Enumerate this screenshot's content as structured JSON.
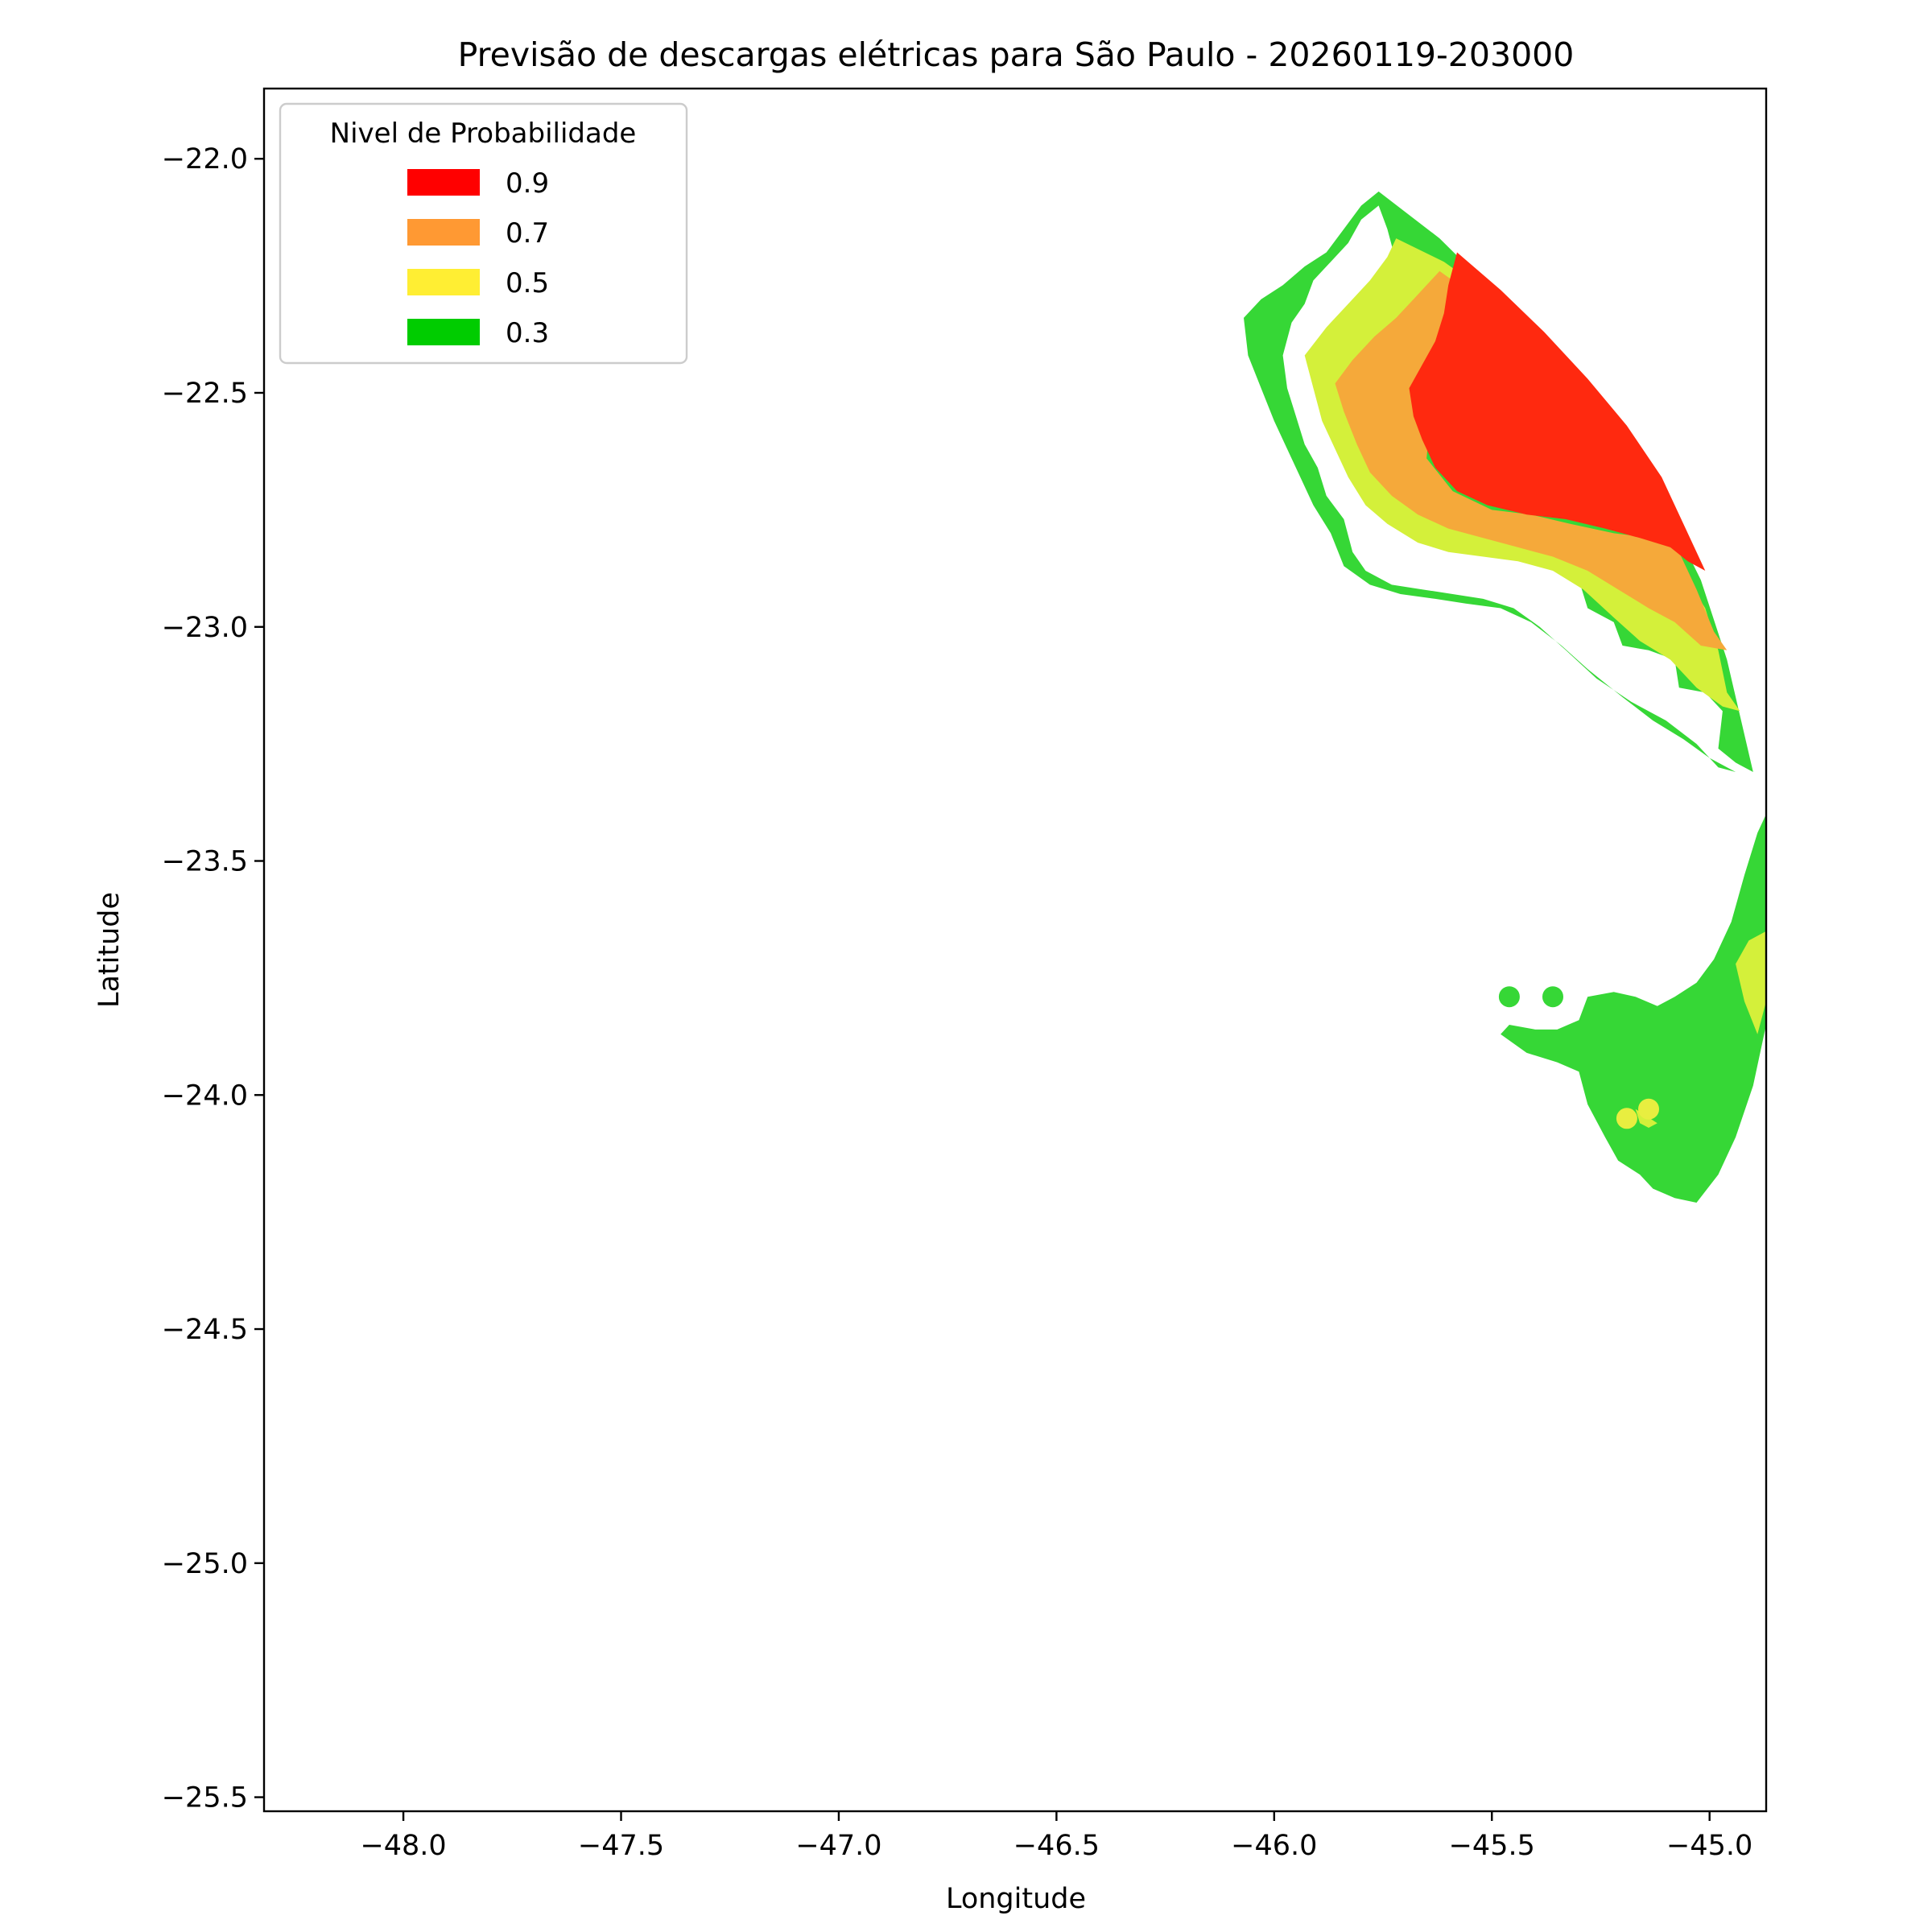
{
  "chart_data": {
    "type": "contour",
    "title": "Previsão de descargas elétricas para São Paulo - 20260119-203000",
    "xlabel": "Longitude",
    "ylabel": "Latitude",
    "xlim": [
      -48.32,
      -44.87
    ],
    "ylim": [
      -25.53,
      -21.85
    ],
    "xticks": [
      -48.0,
      -47.5,
      -47.0,
      -46.5,
      -46.0,
      -45.5,
      -45.0
    ],
    "xtick_labels": [
      "−48.0",
      "−47.5",
      "−47.0",
      "−46.5",
      "−46.0",
      "−45.5",
      "−45.0"
    ],
    "yticks": [
      -22.0,
      -22.5,
      -23.0,
      -23.5,
      -24.0,
      -24.5,
      -25.0,
      -25.5
    ],
    "ytick_labels": [
      "−22.0",
      "−22.5",
      "−23.0",
      "−23.5",
      "−24.0",
      "−24.5",
      "−25.0",
      "−25.5"
    ],
    "grid": false,
    "legend": {
      "title": "Nivel de Probabilidade",
      "placement": "top-left",
      "entries": [
        {
          "label": "0.9",
          "color": "#ff0000"
        },
        {
          "label": "0.7",
          "color": "#ff9933"
        },
        {
          "label": "0.5",
          "color": "#ffee33"
        },
        {
          "label": "0.3",
          "color": "#00cc00"
        }
      ]
    },
    "regions": [
      {
        "level": 0.3,
        "color": "#36d736",
        "points": [
          [
            -45.76,
            -22.07
          ],
          [
            -45.62,
            -22.17
          ],
          [
            -45.49,
            -22.29
          ],
          [
            -45.35,
            -22.42
          ],
          [
            -45.22,
            -22.57
          ],
          [
            -45.11,
            -22.73
          ],
          [
            -45.02,
            -22.9
          ],
          [
            -44.96,
            -23.07
          ],
          [
            -44.9,
            -23.31
          ],
          [
            -44.94,
            -23.29
          ],
          [
            -44.98,
            -23.26
          ],
          [
            -44.97,
            -23.18
          ],
          [
            -45.01,
            -23.14
          ],
          [
            -45.07,
            -23.13
          ],
          [
            -45.08,
            -23.07
          ],
          [
            -45.14,
            -23.05
          ],
          [
            -45.2,
            -23.04
          ],
          [
            -45.22,
            -22.99
          ],
          [
            -45.28,
            -22.96
          ],
          [
            -45.3,
            -22.9
          ],
          [
            -45.37,
            -22.86
          ],
          [
            -45.44,
            -22.84
          ],
          [
            -45.52,
            -22.83
          ],
          [
            -45.6,
            -22.81
          ],
          [
            -45.66,
            -22.78
          ],
          [
            -45.7,
            -22.72
          ],
          [
            -45.7,
            -22.64
          ],
          [
            -45.65,
            -22.58
          ],
          [
            -45.64,
            -22.47
          ],
          [
            -45.67,
            -22.38
          ],
          [
            -45.69,
            -22.3
          ],
          [
            -45.72,
            -22.22
          ],
          [
            -45.74,
            -22.15
          ],
          [
            -45.76,
            -22.1
          ],
          [
            -45.8,
            -22.13
          ],
          [
            -45.83,
            -22.18
          ],
          [
            -45.87,
            -22.22
          ],
          [
            -45.91,
            -22.26
          ],
          [
            -45.93,
            -22.31
          ],
          [
            -45.96,
            -22.35
          ],
          [
            -45.98,
            -22.42
          ],
          [
            -45.97,
            -22.49
          ],
          [
            -45.95,
            -22.55
          ],
          [
            -45.93,
            -22.61
          ],
          [
            -45.9,
            -22.66
          ],
          [
            -45.88,
            -22.72
          ],
          [
            -45.84,
            -22.77
          ],
          [
            -45.82,
            -22.84
          ],
          [
            -45.79,
            -22.88
          ],
          [
            -45.73,
            -22.91
          ],
          [
            -45.66,
            -22.92
          ],
          [
            -45.59,
            -22.93
          ],
          [
            -45.52,
            -22.94
          ],
          [
            -45.45,
            -22.96
          ],
          [
            -45.39,
            -23.0
          ],
          [
            -45.33,
            -23.05
          ],
          [
            -45.26,
            -23.11
          ],
          [
            -45.18,
            -23.16
          ],
          [
            -45.1,
            -23.2
          ],
          [
            -45.03,
            -23.25
          ],
          [
            -44.98,
            -23.3
          ],
          [
            -44.94,
            -23.31
          ],
          [
            -45.0,
            -23.28
          ],
          [
            -45.06,
            -23.24
          ],
          [
            -45.13,
            -23.2
          ],
          [
            -45.2,
            -23.15
          ],
          [
            -45.28,
            -23.09
          ],
          [
            -45.34,
            -23.04
          ],
          [
            -45.41,
            -22.99
          ],
          [
            -45.48,
            -22.96
          ],
          [
            -45.56,
            -22.95
          ],
          [
            -45.63,
            -22.94
          ],
          [
            -45.71,
            -22.93
          ],
          [
            -45.78,
            -22.91
          ],
          [
            -45.84,
            -22.87
          ],
          [
            -45.87,
            -22.8
          ],
          [
            -45.91,
            -22.74
          ],
          [
            -45.94,
            -22.68
          ],
          [
            -45.97,
            -22.62
          ],
          [
            -46.0,
            -22.56
          ],
          [
            -46.03,
            -22.49
          ],
          [
            -46.06,
            -22.42
          ],
          [
            -46.07,
            -22.34
          ],
          [
            -46.03,
            -22.3
          ],
          [
            -45.98,
            -22.27
          ],
          [
            -45.93,
            -22.23
          ],
          [
            -45.88,
            -22.2
          ],
          [
            -45.84,
            -22.15
          ],
          [
            -45.8,
            -22.1
          ]
        ]
      },
      {
        "level": 0.5,
        "color": "#d4f03a",
        "points": [
          [
            -45.72,
            -22.17
          ],
          [
            -45.61,
            -22.22
          ],
          [
            -45.55,
            -22.26
          ],
          [
            -45.59,
            -22.33
          ],
          [
            -45.62,
            -22.42
          ],
          [
            -45.64,
            -22.52
          ],
          [
            -45.66,
            -22.63
          ],
          [
            -45.62,
            -22.72
          ],
          [
            -45.54,
            -22.76
          ],
          [
            -45.45,
            -22.77
          ],
          [
            -45.36,
            -22.79
          ],
          [
            -45.28,
            -22.8
          ],
          [
            -45.19,
            -22.82
          ],
          [
            -45.11,
            -22.83
          ],
          [
            -45.05,
            -22.9
          ],
          [
            -45.01,
            -22.96
          ],
          [
            -44.98,
            -23.05
          ],
          [
            -44.96,
            -23.14
          ],
          [
            -44.93,
            -23.18
          ],
          [
            -44.97,
            -23.17
          ],
          [
            -45.03,
            -23.13
          ],
          [
            -45.09,
            -23.07
          ],
          [
            -45.16,
            -23.03
          ],
          [
            -45.22,
            -22.98
          ],
          [
            -45.29,
            -22.92
          ],
          [
            -45.36,
            -22.88
          ],
          [
            -45.44,
            -22.86
          ],
          [
            -45.52,
            -22.85
          ],
          [
            -45.6,
            -22.84
          ],
          [
            -45.67,
            -22.82
          ],
          [
            -45.74,
            -22.78
          ],
          [
            -45.79,
            -22.74
          ],
          [
            -45.83,
            -22.68
          ],
          [
            -45.86,
            -22.62
          ],
          [
            -45.89,
            -22.56
          ],
          [
            -45.91,
            -22.49
          ],
          [
            -45.93,
            -22.42
          ],
          [
            -45.88,
            -22.36
          ],
          [
            -45.83,
            -22.31
          ],
          [
            -45.78,
            -22.26
          ],
          [
            -45.74,
            -22.21
          ]
        ]
      },
      {
        "level": 0.7,
        "color": "#f5a93a",
        "points": [
          [
            -45.62,
            -22.24
          ],
          [
            -45.56,
            -22.28
          ],
          [
            -45.59,
            -22.35
          ],
          [
            -45.62,
            -22.44
          ],
          [
            -45.64,
            -22.55
          ],
          [
            -45.65,
            -22.64
          ],
          [
            -45.59,
            -22.71
          ],
          [
            -45.5,
            -22.75
          ],
          [
            -45.41,
            -22.76
          ],
          [
            -45.32,
            -22.78
          ],
          [
            -45.22,
            -22.8
          ],
          [
            -45.13,
            -22.81
          ],
          [
            -45.07,
            -22.84
          ],
          [
            -45.03,
            -22.92
          ],
          [
            -44.99,
            -23.01
          ],
          [
            -44.96,
            -23.05
          ],
          [
            -45.02,
            -23.04
          ],
          [
            -45.08,
            -22.99
          ],
          [
            -45.14,
            -22.96
          ],
          [
            -45.21,
            -22.92
          ],
          [
            -45.28,
            -22.88
          ],
          [
            -45.36,
            -22.85
          ],
          [
            -45.44,
            -22.83
          ],
          [
            -45.52,
            -22.81
          ],
          [
            -45.6,
            -22.79
          ],
          [
            -45.67,
            -22.76
          ],
          [
            -45.73,
            -22.72
          ],
          [
            -45.78,
            -22.67
          ],
          [
            -45.81,
            -22.61
          ],
          [
            -45.84,
            -22.54
          ],
          [
            -45.86,
            -22.48
          ],
          [
            -45.82,
            -22.43
          ],
          [
            -45.77,
            -22.38
          ],
          [
            -45.72,
            -22.34
          ],
          [
            -45.68,
            -22.3
          ],
          [
            -45.64,
            -22.26
          ]
        ]
      },
      {
        "level": 0.9,
        "color": "#ff290f",
        "points": [
          [
            -45.58,
            -22.2
          ],
          [
            -45.48,
            -22.28
          ],
          [
            -45.38,
            -22.37
          ],
          [
            -45.28,
            -22.47
          ],
          [
            -45.19,
            -22.57
          ],
          [
            -45.11,
            -22.68
          ],
          [
            -45.06,
            -22.78
          ],
          [
            -45.01,
            -22.88
          ],
          [
            -45.05,
            -22.86
          ],
          [
            -45.09,
            -22.83
          ],
          [
            -45.16,
            -22.81
          ],
          [
            -45.24,
            -22.79
          ],
          [
            -45.33,
            -22.77
          ],
          [
            -45.42,
            -22.76
          ],
          [
            -45.51,
            -22.74
          ],
          [
            -45.58,
            -22.71
          ],
          [
            -45.63,
            -22.66
          ],
          [
            -45.66,
            -22.6
          ],
          [
            -45.68,
            -22.55
          ],
          [
            -45.69,
            -22.49
          ],
          [
            -45.66,
            -22.44
          ],
          [
            -45.63,
            -22.39
          ],
          [
            -45.61,
            -22.33
          ],
          [
            -45.6,
            -22.27
          ]
        ]
      },
      {
        "level": 0.3,
        "color": "#36d736",
        "points": [
          [
            -44.87,
            -23.4
          ],
          [
            -44.87,
            -23.85
          ],
          [
            -44.9,
            -23.98
          ],
          [
            -44.94,
            -24.09
          ],
          [
            -44.98,
            -24.17
          ],
          [
            -45.03,
            -24.23
          ],
          [
            -45.08,
            -24.22
          ],
          [
            -45.13,
            -24.2
          ],
          [
            -45.16,
            -24.17
          ],
          [
            -45.21,
            -24.14
          ],
          [
            -45.24,
            -24.09
          ],
          [
            -45.28,
            -24.02
          ],
          [
            -45.3,
            -23.95
          ],
          [
            -45.35,
            -23.93
          ],
          [
            -45.42,
            -23.91
          ],
          [
            -45.48,
            -23.87
          ],
          [
            -45.46,
            -23.85
          ],
          [
            -45.4,
            -23.86
          ],
          [
            -45.35,
            -23.86
          ],
          [
            -45.3,
            -23.84
          ],
          [
            -45.28,
            -23.79
          ],
          [
            -45.22,
            -23.78
          ],
          [
            -45.17,
            -23.79
          ],
          [
            -45.12,
            -23.81
          ],
          [
            -45.08,
            -23.79
          ],
          [
            -45.03,
            -23.76
          ],
          [
            -44.99,
            -23.71
          ],
          [
            -44.95,
            -23.63
          ],
          [
            -44.92,
            -23.53
          ],
          [
            -44.89,
            -23.44
          ]
        ]
      },
      {
        "level": 0.5,
        "color": "#d4f03a",
        "points": [
          [
            -44.87,
            -23.65
          ],
          [
            -44.87,
            -23.8
          ],
          [
            -44.89,
            -23.87
          ],
          [
            -44.92,
            -23.8
          ],
          [
            -44.94,
            -23.72
          ],
          [
            -44.91,
            -23.67
          ]
        ]
      },
      {
        "level": 0.5,
        "color": "#d4f03a",
        "points": [
          [
            -45.17,
            -24.03
          ],
          [
            -45.12,
            -24.06
          ],
          [
            -45.14,
            -24.07
          ],
          [
            -45.16,
            -24.06
          ]
        ]
      }
    ],
    "points": [
      {
        "x": -45.46,
        "y": -23.79,
        "level": 0.3,
        "color": "#36d736"
      },
      {
        "x": -45.36,
        "y": -23.79,
        "level": 0.3,
        "color": "#36d736"
      },
      {
        "x": -45.19,
        "y": -24.05,
        "level": 0.5,
        "color": "#e8ee40"
      },
      {
        "x": -45.14,
        "y": -24.03,
        "level": 0.5,
        "color": "#e8ee40"
      }
    ]
  }
}
